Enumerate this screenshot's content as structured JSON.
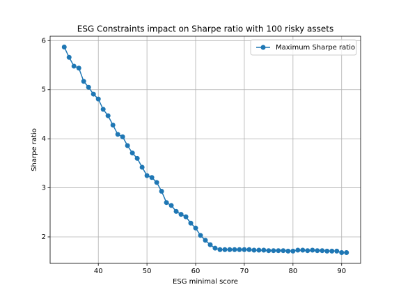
{
  "chart_data": {
    "type": "line",
    "title": "ESG Constraints impact on Sharpe ratio with 100 risky assets",
    "xlabel": "ESG minimal score",
    "ylabel": "Sharpe ratio",
    "x": [
      33,
      34,
      35,
      36,
      37,
      38,
      39,
      40,
      41,
      42,
      43,
      44,
      45,
      46,
      47,
      48,
      49,
      50,
      51,
      52,
      53,
      54,
      55,
      56,
      57,
      58,
      59,
      60,
      61,
      62,
      63,
      64,
      65,
      66,
      67,
      68,
      69,
      70,
      71,
      72,
      73,
      74,
      75,
      76,
      77,
      78,
      79,
      80,
      81,
      82,
      83,
      84,
      85,
      86,
      87,
      88,
      89,
      90,
      91
    ],
    "series": [
      {
        "name": "Maximum Sharpe ratio",
        "color": "#1f77b4",
        "values": [
          5.87,
          5.66,
          5.48,
          5.44,
          5.17,
          5.05,
          4.91,
          4.81,
          4.6,
          4.47,
          4.28,
          4.09,
          4.04,
          3.86,
          3.71,
          3.6,
          3.42,
          3.25,
          3.21,
          3.11,
          2.93,
          2.7,
          2.64,
          2.52,
          2.46,
          2.41,
          2.28,
          2.18,
          2.03,
          1.93,
          1.84,
          1.77,
          1.74,
          1.74,
          1.74,
          1.74,
          1.74,
          1.74,
          1.74,
          1.73,
          1.73,
          1.73,
          1.72,
          1.72,
          1.72,
          1.72,
          1.71,
          1.71,
          1.73,
          1.73,
          1.72,
          1.73,
          1.72,
          1.72,
          1.71,
          1.71,
          1.71,
          1.68,
          1.68
        ]
      }
    ],
    "xlim": [
      30.1,
      93.9
    ],
    "xticks": [
      40,
      50,
      60,
      70,
      80,
      90
    ],
    "ylim": [
      1.46,
      6.09
    ],
    "yticks": [
      2,
      3,
      4,
      5,
      6
    ],
    "grid": true,
    "legend": "upper right"
  }
}
